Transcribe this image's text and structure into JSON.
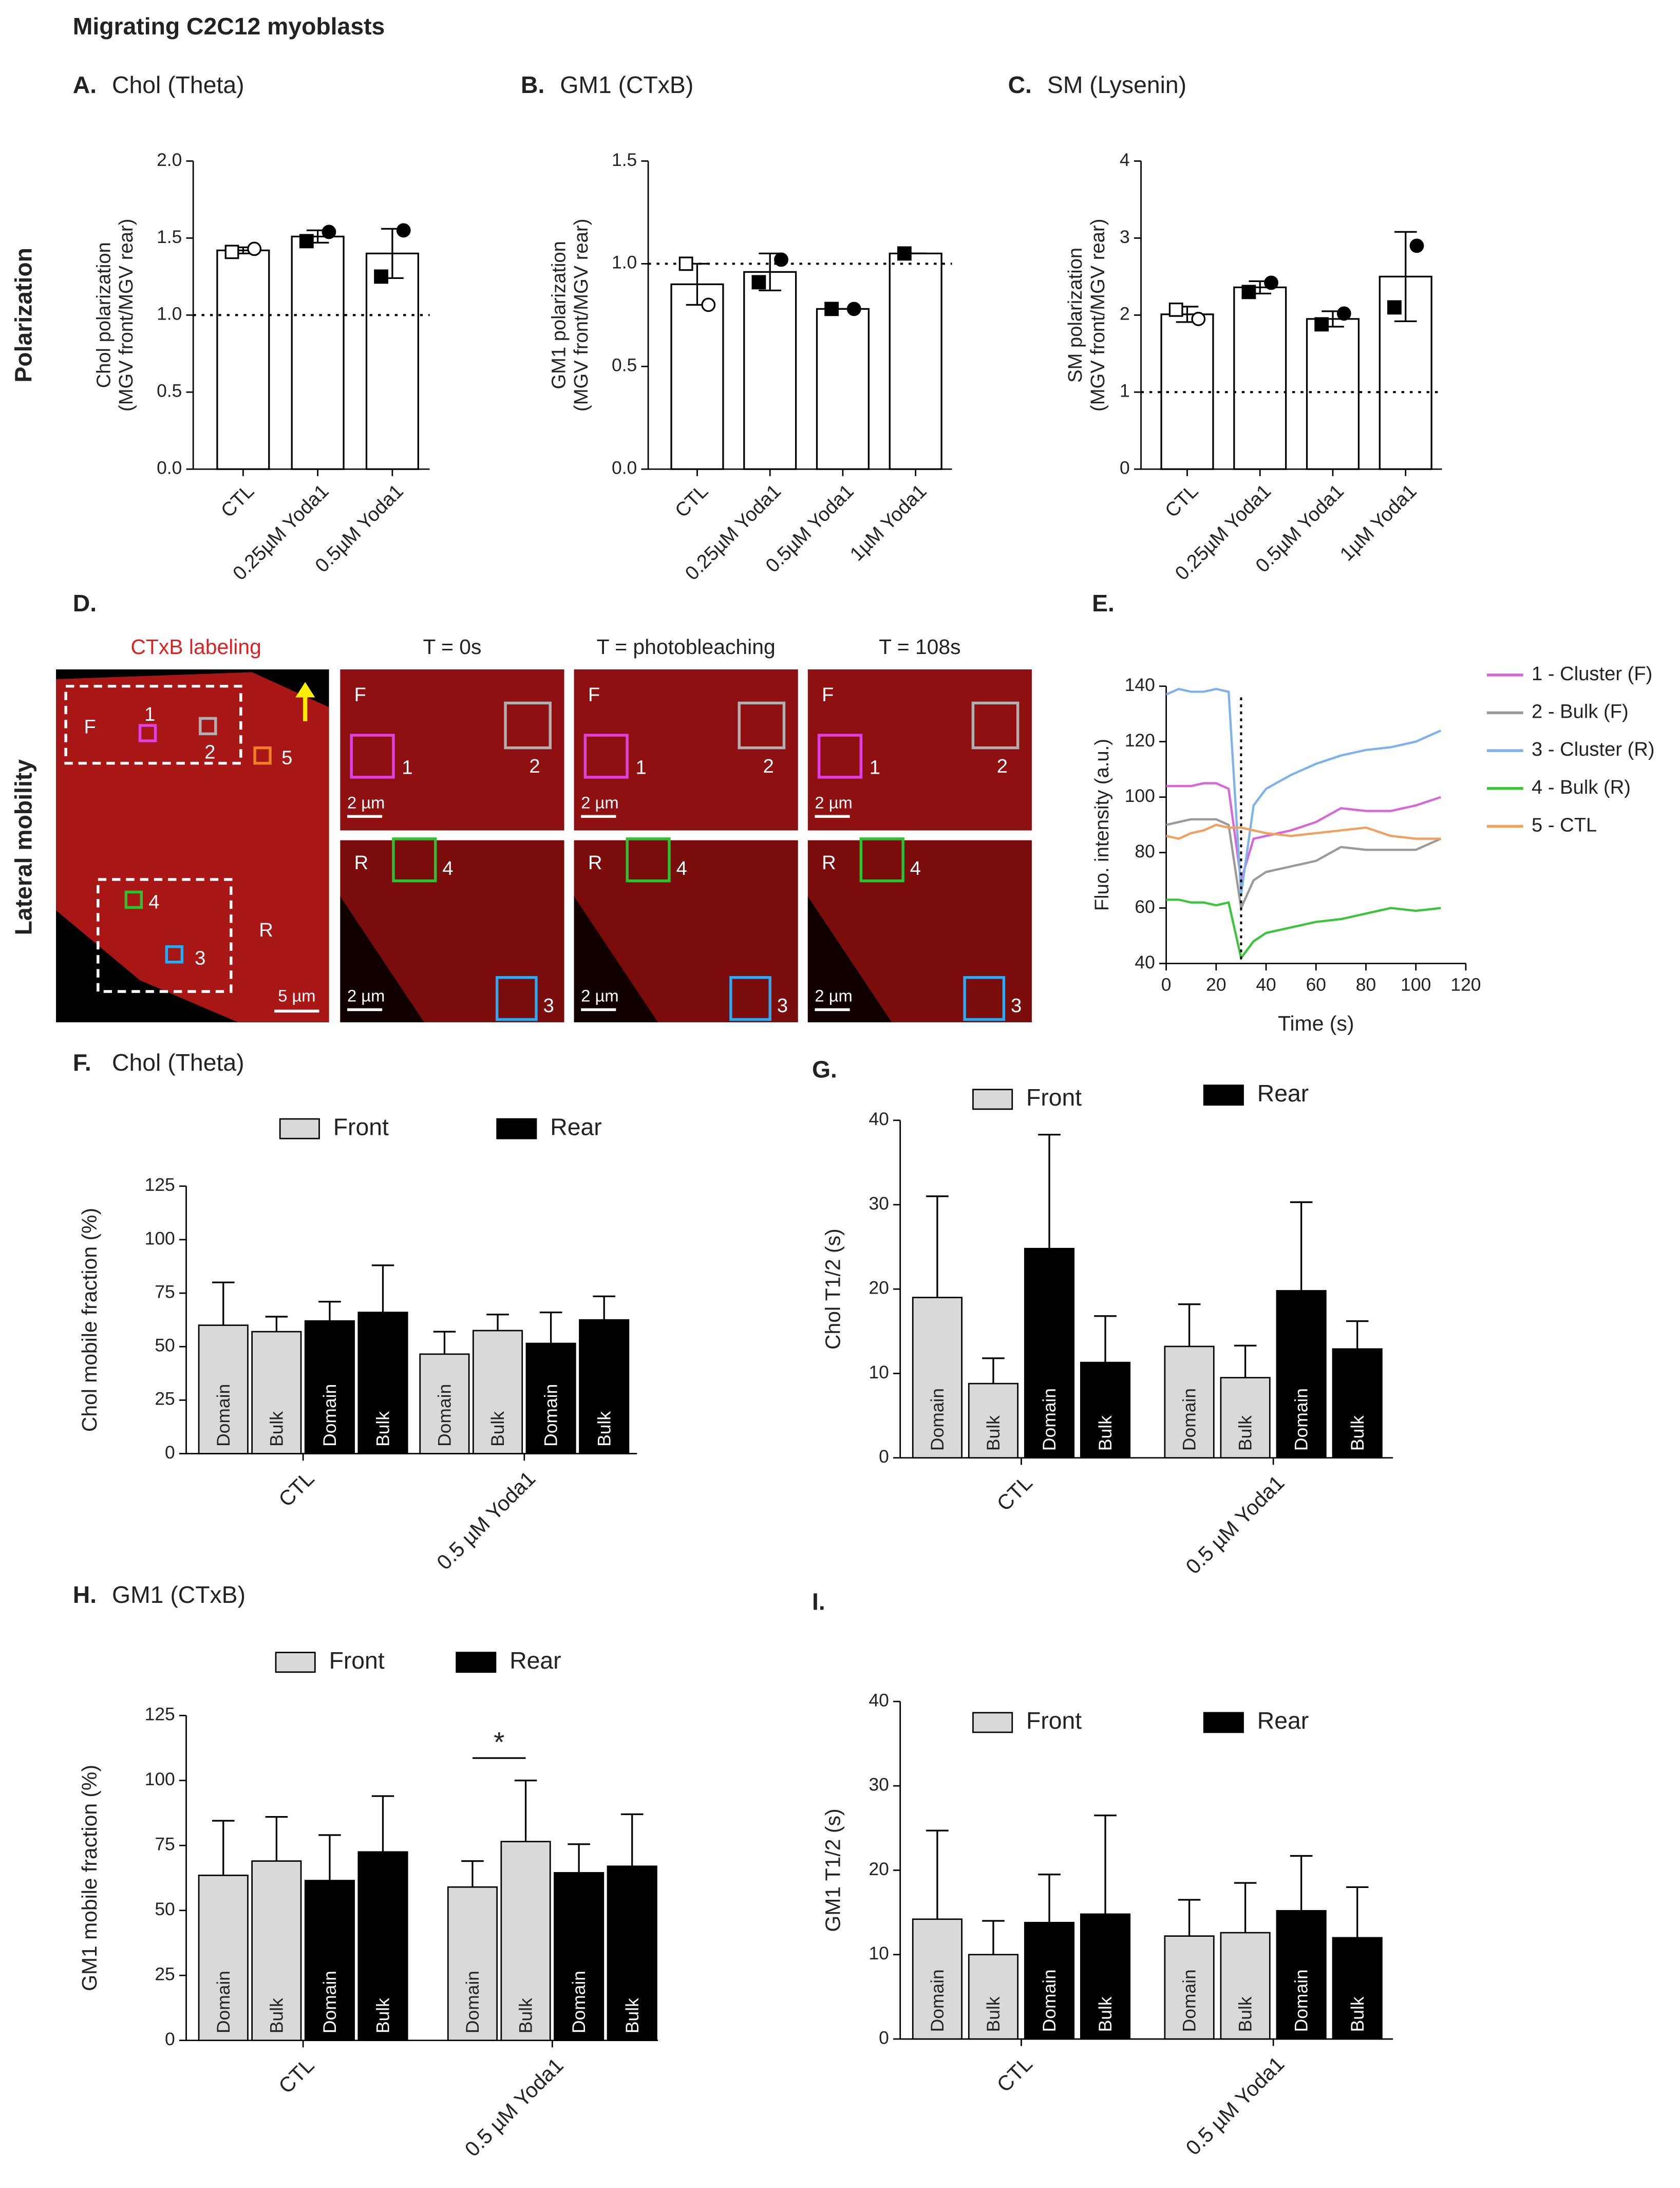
{
  "figure": {
    "title": "Migrating C2C12 myoblasts",
    "row_labels": [
      "Polarization",
      "Lateral mobility"
    ]
  },
  "image_panel": {
    "label": "D.",
    "title": "CTxB labeling",
    "time_labels": [
      "T = 0s",
      "T = photobleaching",
      "T = 108s"
    ],
    "front": "F",
    "rear": "R",
    "roi_labels": [
      "1",
      "2",
      "3",
      "4",
      "5"
    ],
    "scale_overview": "5 µm",
    "scale_zoom": "2 µm"
  },
  "chart_data": [
    {
      "type": "bar",
      "panel": "A.",
      "title": "Chol (Theta)",
      "ylabel": [
        "Chol polarization",
        "(MGV front/MGV rear)"
      ],
      "categories": [
        "CTL",
        "0.25µM Yoda1",
        "0.5µM Yoda1"
      ],
      "values": [
        1.42,
        1.51,
        1.4
      ],
      "errors": [
        0.02,
        0.04,
        0.16
      ],
      "points": [
        {
          "marker": "circle",
          "values": [
            1.43,
            1.54,
            1.55
          ]
        },
        {
          "marker": "square",
          "values": [
            1.41,
            1.48,
            1.25
          ]
        }
      ],
      "open": [
        true,
        false,
        false
      ],
      "ref_line": 1,
      "ylim": [
        0,
        2
      ],
      "yticks": [
        {
          "value": 0,
          "label": "0.0"
        },
        0.5,
        {
          "value": 1,
          "label": "1.0"
        },
        1.5,
        {
          "value": 2,
          "label": "2.0"
        }
      ]
    },
    {
      "type": "bar",
      "panel": "B.",
      "title": "GM1 (CTxB)",
      "ylabel": [
        "GM1 polarization",
        "(MGV front/MGV rear)"
      ],
      "categories": [
        "CTL",
        "0.25µM Yoda1",
        "0.5µM Yoda1",
        "1µM Yoda1"
      ],
      "values": [
        0.9,
        0.96,
        0.78,
        1.05
      ],
      "errors": [
        0.1,
        0.09,
        0,
        0
      ],
      "points": [
        {
          "marker": "circle",
          "values": [
            0.8,
            1.02,
            0.78,
            null
          ]
        },
        {
          "marker": "square",
          "values": [
            1.0,
            0.91,
            0.78,
            1.05
          ]
        }
      ],
      "open": [
        true,
        false,
        false,
        false
      ],
      "ref_line": 1,
      "ylim": [
        0,
        1.5
      ],
      "yticks": [
        {
          "value": 0,
          "label": "0.0"
        },
        0.5,
        {
          "value": 1,
          "label": "1.0"
        },
        1.5
      ]
    },
    {
      "type": "bar",
      "panel": "C.",
      "title": "SM (Lysenin)",
      "ylabel": [
        "SM polarization",
        "(MGV front/MGV rear)"
      ],
      "categories": [
        "CTL",
        "0.25µM Yoda1",
        "0.5µM Yoda1",
        "1µM Yoda1"
      ],
      "values": [
        2.01,
        2.36,
        1.95,
        2.5
      ],
      "errors": [
        0.1,
        0.08,
        0.1,
        0.58
      ],
      "points": [
        {
          "marker": "circle",
          "values": [
            1.95,
            2.42,
            2.02,
            2.9
          ]
        },
        {
          "marker": "square",
          "values": [
            2.07,
            2.3,
            1.88,
            2.1
          ]
        }
      ],
      "open": [
        true,
        false,
        false,
        false
      ],
      "ref_line": 1,
      "ylim": [
        0,
        4
      ],
      "yticks": [
        0,
        1,
        2,
        3,
        4
      ]
    },
    {
      "type": "line",
      "panel": "E.",
      "xlabel": "Time (s)",
      "ylabel": "Fluo. intensity (a.u.)",
      "x": [
        0,
        5,
        10,
        15,
        20,
        25,
        30,
        35,
        40,
        50,
        60,
        70,
        80,
        90,
        100,
        110
      ],
      "series": [
        {
          "name": "1 - Cluster (F)",
          "color": "#d966d6",
          "values": [
            104,
            104,
            104,
            105,
            105,
            103,
            70,
            85,
            86,
            88,
            91,
            96,
            95,
            95,
            97,
            100
          ]
        },
        {
          "name": "2 - Bulk (F)",
          "color": "#9a9a9a",
          "values": [
            90,
            91,
            92,
            92,
            92,
            90,
            60,
            70,
            73,
            75,
            77,
            82,
            81,
            81,
            81,
            85
          ]
        },
        {
          "name": "3 - Cluster (R)",
          "color": "#7fb2ea",
          "values": [
            137,
            139,
            138,
            138,
            139,
            138,
            65,
            97,
            103,
            108,
            112,
            115,
            117,
            118,
            120,
            124
          ]
        },
        {
          "name": "4 - Bulk (R)",
          "color": "#3cc43c",
          "values": [
            63,
            63,
            62,
            62,
            61,
            62,
            42,
            48,
            51,
            53,
            55,
            56,
            58,
            60,
            59,
            60
          ]
        },
        {
          "name": "5 - CTL",
          "color": "#f0a060",
          "values": [
            86,
            85,
            87,
            88,
            90,
            89,
            89,
            88,
            87,
            86,
            87,
            88,
            89,
            86,
            85,
            85
          ]
        }
      ],
      "vline": 30,
      "xlim": [
        0,
        120
      ],
      "xticks": [
        0,
        20,
        40,
        60,
        80,
        100,
        120
      ],
      "ylim": [
        40,
        140
      ],
      "yticks": [
        40,
        60,
        80,
        100,
        120,
        140
      ]
    },
    {
      "type": "groupbar",
      "panel": "F.",
      "title": "Chol (Theta)",
      "ylabel": "Chol mobile fraction (%)",
      "categories": [
        "CTL",
        "0.5 µM Yoda1"
      ],
      "groups": [
        {
          "name": "Front",
          "color": "#d9d9d9"
        },
        {
          "name": "Rear",
          "color": "#000000"
        }
      ],
      "series": [
        {
          "label": "Domain",
          "group": 0,
          "values": [
            60,
            46.5
          ],
          "errors": [
            20,
            10.5
          ]
        },
        {
          "label": "Bulk",
          "group": 0,
          "values": [
            57,
            57.5
          ],
          "errors": [
            7,
            7.5
          ]
        },
        {
          "label": "Domain",
          "group": 1,
          "values": [
            62,
            51.5
          ],
          "errors": [
            9,
            14.5
          ]
        },
        {
          "label": "Bulk",
          "group": 1,
          "values": [
            66,
            62.5
          ],
          "errors": [
            22,
            11
          ]
        }
      ],
      "ylim": [
        0,
        125
      ],
      "yticks": [
        0,
        25,
        50,
        75,
        100,
        125
      ]
    },
    {
      "type": "groupbar",
      "panel": "G.",
      "ylabel": "Chol T1/2 (s)",
      "categories": [
        "CTL",
        "0.5 µM Yoda1"
      ],
      "groups": [
        {
          "name": "Front",
          "color": "#d9d9d9"
        },
        {
          "name": "Rear",
          "color": "#000000"
        }
      ],
      "series": [
        {
          "label": "Domain",
          "group": 0,
          "values": [
            19,
            13.2
          ],
          "errors": [
            12,
            5
          ]
        },
        {
          "label": "Bulk",
          "group": 0,
          "values": [
            8.8,
            9.5
          ],
          "errors": [
            3,
            3.8
          ]
        },
        {
          "label": "Domain",
          "group": 1,
          "values": [
            24.8,
            19.8
          ],
          "errors": [
            13.5,
            10.5
          ]
        },
        {
          "label": "Bulk",
          "group": 1,
          "values": [
            11.3,
            12.9
          ],
          "errors": [
            5.5,
            3.3
          ]
        }
      ],
      "ylim": [
        0,
        40
      ],
      "yticks": [
        0,
        10,
        20,
        30,
        40
      ]
    },
    {
      "type": "groupbar",
      "panel": "H.",
      "title": "GM1 (CTxB)",
      "ylabel": "GM1 mobile fraction (%)",
      "categories": [
        "CTL",
        "0.5 µM Yoda1"
      ],
      "groups": [
        {
          "name": "Front",
          "color": "#d9d9d9"
        },
        {
          "name": "Rear",
          "color": "#000000"
        }
      ],
      "series": [
        {
          "label": "Domain",
          "group": 0,
          "values": [
            63.5,
            59
          ],
          "errors": [
            21,
            10
          ]
        },
        {
          "label": "Bulk",
          "group": 0,
          "values": [
            69,
            76.5
          ],
          "errors": [
            17,
            23.5
          ]
        },
        {
          "label": "Domain",
          "group": 1,
          "values": [
            61.5,
            64.5
          ],
          "errors": [
            17.5,
            11
          ]
        },
        {
          "label": "Bulk",
          "group": 1,
          "values": [
            72.5,
            67
          ],
          "errors": [
            21.5,
            20
          ]
        }
      ],
      "significance": {
        "text": "*",
        "category": 1,
        "series": [
          0,
          1
        ]
      },
      "ylim": [
        0,
        125
      ],
      "yticks": [
        0,
        25,
        50,
        75,
        100,
        125
      ]
    },
    {
      "type": "groupbar",
      "panel": "I.",
      "ylabel": "GM1 T1/2 (s)",
      "categories": [
        "CTL",
        "0.5 µM Yoda1"
      ],
      "groups": [
        {
          "name": "Front",
          "color": "#d9d9d9"
        },
        {
          "name": "Rear",
          "color": "#000000"
        }
      ],
      "series": [
        {
          "label": "Domain",
          "group": 0,
          "values": [
            14.2,
            12.2
          ],
          "errors": [
            10.5,
            4.3
          ]
        },
        {
          "label": "Bulk",
          "group": 0,
          "values": [
            10,
            12.6
          ],
          "errors": [
            4,
            5.9
          ]
        },
        {
          "label": "Domain",
          "group": 1,
          "values": [
            13.8,
            15.2
          ],
          "errors": [
            5.7,
            6.5
          ]
        },
        {
          "label": "Bulk",
          "group": 1,
          "values": [
            14.8,
            12
          ],
          "errors": [
            11.7,
            6
          ]
        }
      ],
      "ylim": [
        0,
        40
      ],
      "yticks": [
        0,
        10,
        20,
        30,
        40
      ]
    }
  ]
}
